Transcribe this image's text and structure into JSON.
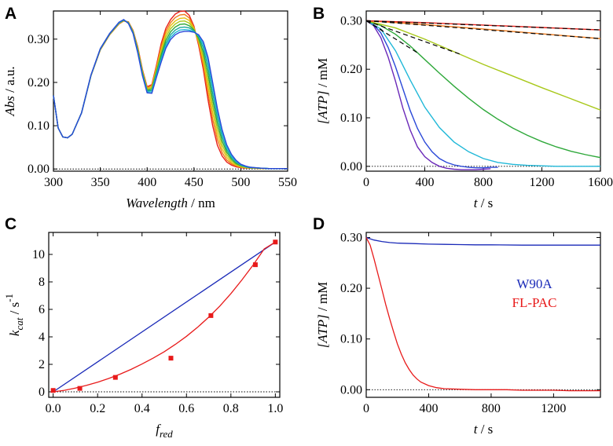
{
  "figure": {
    "panels": [
      "A",
      "B",
      "C",
      "D"
    ]
  },
  "chart_data": [
    {
      "id": "A",
      "type": "line",
      "panel_letter": "A",
      "title": "",
      "xlabel_italic": "Wavelength",
      "xlabel_unit": " / nm",
      "ylabel_italic": "Abs",
      "ylabel_unit": " / a.u.",
      "xlim": [
        300,
        550
      ],
      "ylim": [
        -0.005,
        0.365
      ],
      "xticks": [
        300,
        350,
        400,
        450,
        500,
        550
      ],
      "xtick_labels": [
        "300",
        "350",
        "400",
        "450",
        "500",
        "550"
      ],
      "yticks": [
        0.0,
        0.1,
        0.2,
        0.3
      ],
      "ytick_labels": [
        "0.00",
        "0.10",
        "0.20",
        "0.30"
      ],
      "baseline": 0.0,
      "x": [
        300,
        305,
        310,
        315,
        320,
        330,
        340,
        350,
        360,
        370,
        375,
        380,
        385,
        390,
        395,
        400,
        405,
        410,
        415,
        420,
        425,
        430,
        435,
        440,
        445,
        450,
        455,
        460,
        465,
        470,
        475,
        480,
        485,
        490,
        495,
        500,
        505,
        510,
        520,
        530,
        550
      ],
      "series": [
        {
          "name": "red",
          "color": "#e8201a",
          "values": [
            0.17,
            0.095,
            0.074,
            0.072,
            0.08,
            0.13,
            0.215,
            0.275,
            0.31,
            0.335,
            0.342,
            0.34,
            0.32,
            0.282,
            0.23,
            0.19,
            0.195,
            0.24,
            0.29,
            0.325,
            0.345,
            0.358,
            0.364,
            0.365,
            0.355,
            0.33,
            0.285,
            0.23,
            0.16,
            0.1,
            0.055,
            0.03,
            0.016,
            0.009,
            0.005,
            0.003,
            0.002,
            0.002,
            0.001,
            0.001,
            0.001
          ]
        },
        {
          "name": "orange",
          "color": "#f07a1a",
          "values": [
            0.17,
            0.095,
            0.074,
            0.072,
            0.08,
            0.13,
            0.215,
            0.275,
            0.31,
            0.336,
            0.342,
            0.339,
            0.319,
            0.28,
            0.228,
            0.188,
            0.193,
            0.236,
            0.283,
            0.318,
            0.338,
            0.35,
            0.356,
            0.357,
            0.349,
            0.327,
            0.29,
            0.24,
            0.175,
            0.115,
            0.068,
            0.038,
            0.021,
            0.012,
            0.007,
            0.004,
            0.003,
            0.002,
            0.001,
            0.001,
            0.001
          ]
        },
        {
          "name": "yellow",
          "color": "#e8c010",
          "values": [
            0.17,
            0.095,
            0.074,
            0.072,
            0.08,
            0.13,
            0.215,
            0.276,
            0.311,
            0.336,
            0.343,
            0.339,
            0.318,
            0.278,
            0.226,
            0.186,
            0.19,
            0.232,
            0.276,
            0.311,
            0.331,
            0.342,
            0.348,
            0.349,
            0.343,
            0.325,
            0.294,
            0.25,
            0.19,
            0.13,
            0.08,
            0.047,
            0.027,
            0.015,
            0.009,
            0.005,
            0.003,
            0.002,
            0.001,
            0.001,
            0.001
          ]
        },
        {
          "name": "yellow-green",
          "color": "#a8c81a",
          "values": [
            0.17,
            0.095,
            0.074,
            0.072,
            0.08,
            0.13,
            0.216,
            0.276,
            0.311,
            0.337,
            0.343,
            0.338,
            0.317,
            0.276,
            0.224,
            0.184,
            0.187,
            0.228,
            0.27,
            0.304,
            0.324,
            0.335,
            0.341,
            0.342,
            0.337,
            0.323,
            0.298,
            0.26,
            0.205,
            0.145,
            0.093,
            0.056,
            0.033,
            0.019,
            0.011,
            0.006,
            0.004,
            0.003,
            0.002,
            0.001,
            0.001
          ]
        },
        {
          "name": "green",
          "color": "#2ea83a",
          "values": [
            0.17,
            0.095,
            0.074,
            0.072,
            0.08,
            0.13,
            0.216,
            0.277,
            0.312,
            0.337,
            0.344,
            0.338,
            0.316,
            0.274,
            0.222,
            0.182,
            0.184,
            0.224,
            0.263,
            0.297,
            0.317,
            0.328,
            0.334,
            0.335,
            0.331,
            0.321,
            0.302,
            0.27,
            0.22,
            0.16,
            0.106,
            0.065,
            0.039,
            0.023,
            0.013,
            0.008,
            0.005,
            0.003,
            0.002,
            0.001,
            0.001
          ]
        },
        {
          "name": "teal",
          "color": "#1aa89a",
          "values": [
            0.17,
            0.095,
            0.074,
            0.072,
            0.08,
            0.13,
            0.216,
            0.277,
            0.312,
            0.338,
            0.344,
            0.337,
            0.315,
            0.272,
            0.22,
            0.18,
            0.181,
            0.22,
            0.257,
            0.29,
            0.31,
            0.321,
            0.327,
            0.328,
            0.326,
            0.319,
            0.306,
            0.28,
            0.235,
            0.175,
            0.119,
            0.075,
            0.045,
            0.027,
            0.016,
            0.009,
            0.005,
            0.003,
            0.002,
            0.001,
            0.001
          ]
        },
        {
          "name": "cyan",
          "color": "#20b8d8",
          "values": [
            0.17,
            0.095,
            0.074,
            0.072,
            0.08,
            0.13,
            0.216,
            0.278,
            0.313,
            0.338,
            0.345,
            0.337,
            0.314,
            0.27,
            0.218,
            0.178,
            0.178,
            0.216,
            0.252,
            0.284,
            0.304,
            0.315,
            0.321,
            0.322,
            0.321,
            0.317,
            0.308,
            0.288,
            0.248,
            0.19,
            0.131,
            0.084,
            0.051,
            0.03,
            0.018,
            0.01,
            0.006,
            0.004,
            0.002,
            0.001,
            0.001
          ]
        },
        {
          "name": "blue",
          "color": "#2a48d8",
          "values": [
            0.17,
            0.095,
            0.074,
            0.072,
            0.08,
            0.13,
            0.217,
            0.278,
            0.313,
            0.339,
            0.345,
            0.336,
            0.313,
            0.268,
            0.216,
            0.176,
            0.175,
            0.212,
            0.247,
            0.279,
            0.299,
            0.31,
            0.316,
            0.318,
            0.318,
            0.316,
            0.31,
            0.294,
            0.258,
            0.2,
            0.14,
            0.091,
            0.056,
            0.034,
            0.02,
            0.011,
            0.007,
            0.004,
            0.002,
            0.001,
            0.001
          ]
        }
      ]
    },
    {
      "id": "B",
      "type": "line",
      "panel_letter": "B",
      "title": "",
      "xlabel_italic": "t",
      "xlabel_unit": " / s",
      "ylabel_italic": "[ATP]",
      "ylabel_unit": " / mM",
      "xlim": [
        0,
        1600
      ],
      "ylim": [
        -0.01,
        0.32
      ],
      "xticks": [
        0,
        400,
        800,
        1200,
        1600
      ],
      "xtick_labels": [
        "0",
        "400",
        "800",
        "1200",
        "1600"
      ],
      "yticks": [
        0.0,
        0.1,
        0.2,
        0.3
      ],
      "ytick_labels": [
        "0.00",
        "0.10",
        "0.20",
        "0.30"
      ],
      "baseline": 0.0,
      "series": [
        {
          "name": "purple",
          "color": "#6a28b8",
          "x": [
            0,
            50,
            100,
            150,
            200,
            250,
            300,
            350,
            400,
            450,
            500,
            550,
            600,
            650,
            700,
            750,
            800,
            850
          ],
          "values": [
            0.3,
            0.29,
            0.265,
            0.225,
            0.175,
            0.12,
            0.075,
            0.04,
            0.02,
            0.008,
            0.0,
            -0.004,
            -0.006,
            -0.007,
            -0.007,
            -0.007,
            -0.006,
            -0.005
          ]
        },
        {
          "name": "blue",
          "color": "#2a48d8",
          "x": [
            0,
            50,
            100,
            150,
            200,
            250,
            300,
            350,
            400,
            450,
            500,
            550,
            600,
            650,
            700,
            750,
            800,
            850,
            900
          ],
          "values": [
            0.3,
            0.292,
            0.275,
            0.245,
            0.205,
            0.16,
            0.115,
            0.078,
            0.05,
            0.03,
            0.016,
            0.008,
            0.003,
            0.0,
            -0.002,
            -0.003,
            -0.003,
            -0.002,
            -0.002
          ]
        },
        {
          "name": "cyan",
          "color": "#20b8d8",
          "x": [
            0,
            100,
            200,
            300,
            400,
            500,
            600,
            700,
            800,
            900,
            1000,
            1100,
            1200,
            1300,
            1400,
            1500,
            1600
          ],
          "values": [
            0.3,
            0.283,
            0.238,
            0.178,
            0.122,
            0.08,
            0.05,
            0.03,
            0.016,
            0.008,
            0.004,
            0.002,
            0.001,
            0.0,
            0.0,
            0.0,
            0.0
          ]
        },
        {
          "name": "green",
          "color": "#2ea83a",
          "x": [
            0,
            100,
            200,
            300,
            400,
            500,
            600,
            700,
            800,
            900,
            1000,
            1100,
            1200,
            1300,
            1400,
            1500,
            1600
          ],
          "values": [
            0.3,
            0.29,
            0.272,
            0.248,
            0.22,
            0.192,
            0.165,
            0.14,
            0.117,
            0.097,
            0.079,
            0.064,
            0.051,
            0.04,
            0.031,
            0.024,
            0.018
          ]
        },
        {
          "name": "yellow-green",
          "color": "#a8c81a",
          "x": [
            0,
            200,
            400,
            600,
            800,
            1000,
            1200,
            1400,
            1600
          ],
          "values": [
            0.3,
            0.285,
            0.262,
            0.236,
            0.21,
            0.186,
            0.162,
            0.139,
            0.116
          ]
        },
        {
          "name": "orange",
          "color": "#f07a1a",
          "x": [
            0,
            400,
            800,
            1200,
            1600
          ],
          "values": [
            0.3,
            0.292,
            0.283,
            0.273,
            0.263
          ]
        },
        {
          "name": "red",
          "color": "#e8201a",
          "x": [
            0,
            400,
            800,
            1200,
            1600
          ],
          "values": [
            0.3,
            0.296,
            0.291,
            0.286,
            0.281
          ]
        }
      ],
      "fits": [
        {
          "name": "fit-red",
          "color": "#000000",
          "x": [
            0,
            1600
          ],
          "values": [
            0.3,
            0.281
          ]
        },
        {
          "name": "fit-orange",
          "color": "#000000",
          "x": [
            0,
            1600
          ],
          "values": [
            0.3,
            0.263
          ]
        },
        {
          "name": "fit-yellow-green",
          "color": "#000000",
          "x": [
            0,
            650
          ],
          "values": [
            0.3,
            0.23
          ]
        },
        {
          "name": "fit-green",
          "color": "#000000",
          "x": [
            0,
            350
          ],
          "values": [
            0.3,
            0.234
          ]
        },
        {
          "name": "fit-cyan",
          "color": "#000000",
          "x": [
            0,
            110
          ],
          "values": [
            0.3,
            0.28
          ]
        }
      ]
    },
    {
      "id": "C",
      "type": "scatter",
      "panel_letter": "C",
      "title": "",
      "xlabel_italic": "f",
      "xlabel_sub": "red",
      "ylabel_italic": "k",
      "ylabel_sub": "cat",
      "ylabel_unit": " / s",
      "ylabel_sup": "-1",
      "xlim": [
        -0.02,
        1.02
      ],
      "ylim": [
        -0.4,
        11.6
      ],
      "xticks": [
        0.0,
        0.2,
        0.4,
        0.6,
        0.8,
        1.0
      ],
      "xtick_labels": [
        "0.0",
        "0.2",
        "0.4",
        "0.6",
        "0.8",
        "1.0"
      ],
      "yticks": [
        0,
        2,
        4,
        6,
        8,
        10
      ],
      "ytick_labels": [
        "0",
        "2",
        "4",
        "6",
        "8",
        "10"
      ],
      "baseline": 0.0,
      "points": {
        "name": "data",
        "color": "#e81a1a",
        "x": [
          0.0,
          0.12,
          0.28,
          0.53,
          0.71,
          0.91,
          1.0
        ],
        "values": [
          0.1,
          0.25,
          1.05,
          2.45,
          5.55,
          9.25,
          10.9
        ]
      },
      "linear": {
        "name": "linear",
        "color": "#1a2ab8",
        "x": [
          0.0,
          1.0
        ],
        "values": [
          0.0,
          10.9
        ]
      },
      "curve": {
        "name": "fit",
        "color": "#e81a1a",
        "x": [
          0.0,
          0.05,
          0.1,
          0.15,
          0.2,
          0.25,
          0.3,
          0.35,
          0.4,
          0.45,
          0.5,
          0.55,
          0.6,
          0.65,
          0.7,
          0.75,
          0.8,
          0.85,
          0.9,
          0.95,
          1.0
        ],
        "values": [
          0.0,
          0.11,
          0.27,
          0.47,
          0.7,
          0.97,
          1.28,
          1.63,
          2.02,
          2.45,
          2.92,
          3.45,
          4.04,
          4.7,
          5.43,
          6.24,
          7.15,
          8.15,
          9.23,
          10.4,
          10.9
        ]
      }
    },
    {
      "id": "D",
      "type": "line",
      "panel_letter": "D",
      "title": "",
      "xlabel_italic": "t",
      "xlabel_unit": " / s",
      "ylabel_italic": "[ATP]",
      "ylabel_unit": " / mM",
      "xlim": [
        0,
        1500
      ],
      "ylim": [
        -0.015,
        0.31
      ],
      "xticks": [
        0,
        400,
        800,
        1200
      ],
      "xtick_labels": [
        "0",
        "400",
        "800",
        "1200"
      ],
      "yticks": [
        0.0,
        0.1,
        0.2,
        0.3
      ],
      "ytick_labels": [
        "0.00",
        "0.10",
        "0.20",
        "0.30"
      ],
      "baseline": 0.0,
      "legend": [
        {
          "label": "W90A",
          "color": "#1a2ab8"
        },
        {
          "label": "FL-PAC",
          "color": "#e81a1a"
        }
      ],
      "series": [
        {
          "name": "W90A",
          "color": "#1a2ab8",
          "x": [
            0,
            50,
            100,
            150,
            200,
            300,
            400,
            500,
            600,
            700,
            800,
            1000,
            1200,
            1400,
            1500
          ],
          "values": [
            0.3,
            0.295,
            0.292,
            0.29,
            0.289,
            0.288,
            0.287,
            0.2865,
            0.286,
            0.2855,
            0.2855,
            0.285,
            0.285,
            0.285,
            0.285
          ]
        },
        {
          "name": "FL-PAC",
          "color": "#e81a1a",
          "x": [
            0,
            25,
            50,
            75,
            100,
            125,
            150,
            175,
            200,
            225,
            250,
            275,
            300,
            325,
            350,
            400,
            450,
            500,
            600,
            700,
            800,
            900,
            1000,
            1100,
            1200,
            1300,
            1400,
            1500
          ],
          "values": [
            0.3,
            0.285,
            0.258,
            0.228,
            0.198,
            0.168,
            0.14,
            0.114,
            0.09,
            0.07,
            0.053,
            0.04,
            0.029,
            0.021,
            0.015,
            0.008,
            0.004,
            0.002,
            0.001,
            0.0,
            0.0,
            0.0,
            -0.001,
            -0.001,
            -0.001,
            -0.002,
            -0.002,
            -0.002
          ]
        }
      ]
    }
  ]
}
